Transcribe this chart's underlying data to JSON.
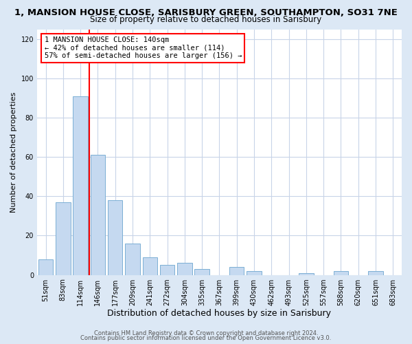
{
  "title": "1, MANSION HOUSE CLOSE, SARISBURY GREEN, SOUTHAMPTON, SO31 7NE",
  "subtitle": "Size of property relative to detached houses in Sarisbury",
  "xlabel": "Distribution of detached houses by size in Sarisbury",
  "ylabel": "Number of detached properties",
  "bar_labels": [
    "51sqm",
    "83sqm",
    "114sqm",
    "146sqm",
    "177sqm",
    "209sqm",
    "241sqm",
    "272sqm",
    "304sqm",
    "335sqm",
    "367sqm",
    "399sqm",
    "430sqm",
    "462sqm",
    "493sqm",
    "525sqm",
    "557sqm",
    "588sqm",
    "620sqm",
    "651sqm",
    "683sqm"
  ],
  "bar_values": [
    8,
    37,
    91,
    61,
    38,
    16,
    9,
    5,
    6,
    3,
    0,
    4,
    2,
    0,
    0,
    1,
    0,
    2,
    0,
    2,
    0
  ],
  "bar_color": "#c5d9f0",
  "bar_edge_color": "#7bafd4",
  "vline_after_index": 2,
  "vline_color": "red",
  "annotation_text": "1 MANSION HOUSE CLOSE: 140sqm\n← 42% of detached houses are smaller (114)\n57% of semi-detached houses are larger (156) →",
  "annotation_box_color": "white",
  "annotation_box_edge_color": "red",
  "ylim": [
    0,
    125
  ],
  "yticks": [
    0,
    20,
    40,
    60,
    80,
    100,
    120
  ],
  "footer_line1": "Contains HM Land Registry data © Crown copyright and database right 2024.",
  "footer_line2": "Contains public sector information licensed under the Open Government Licence v3.0.",
  "outer_background_color": "#dce8f5",
  "plot_background_color": "#ffffff",
  "grid_color": "#c8d4e8",
  "title_fontsize": 9.5,
  "subtitle_fontsize": 8.5,
  "xlabel_fontsize": 9,
  "ylabel_fontsize": 8,
  "tick_fontsize": 7,
  "footer_fontsize": 6,
  "annotation_fontsize": 7.5
}
